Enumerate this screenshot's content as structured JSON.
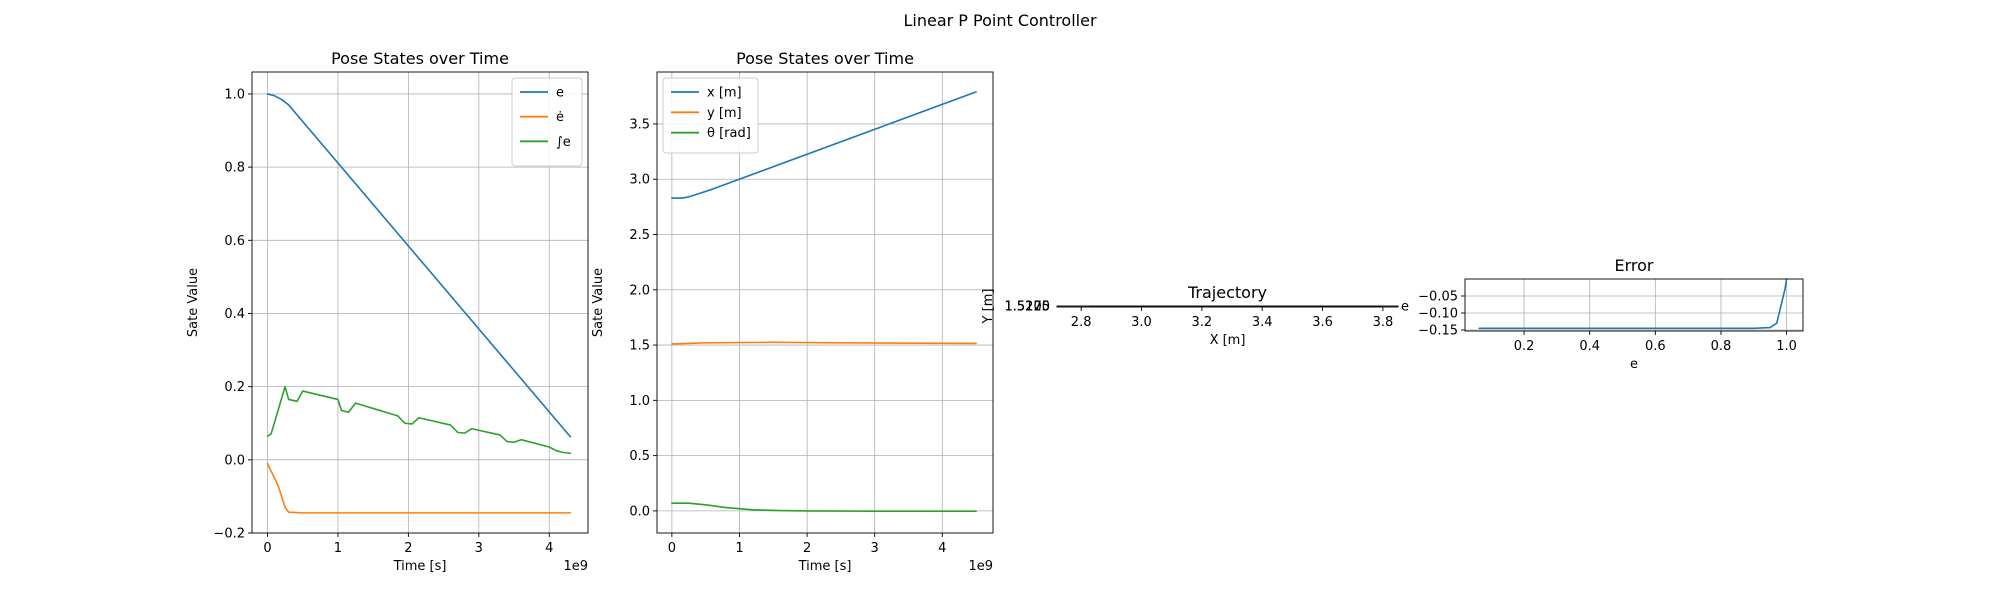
{
  "figure": {
    "suptitle": "Linear P Point Controller"
  },
  "chart_data": [
    {
      "type": "line",
      "title": "Pose States over Time",
      "xlabel": "Time [s]",
      "ylabel": "Sate Value",
      "x_offset_text": "1e9",
      "xlim": [
        -0.22,
        4.55
      ],
      "ylim": [
        -0.2,
        1.06
      ],
      "xticks": [
        0,
        1,
        2,
        3,
        4
      ],
      "xtick_labels": [
        "0",
        "1",
        "2",
        "3",
        "4"
      ],
      "yticks": [
        -0.2,
        0.0,
        0.2,
        0.4,
        0.6,
        0.8,
        1.0
      ],
      "ytick_labels": [
        "−0.2",
        "0.0",
        "0.2",
        "0.4",
        "0.6",
        "0.8",
        "1.0"
      ],
      "grid": true,
      "legend_position": "upper right",
      "series": [
        {
          "name": "e",
          "color": "#1f77b4",
          "x": [
            0,
            0.1,
            0.2,
            0.3,
            4.3
          ],
          "y": [
            1.0,
            0.995,
            0.985,
            0.97,
            0.063
          ]
        },
        {
          "name": "ė",
          "color": "#ff7f0e",
          "x": [
            0,
            0.05,
            0.15,
            0.25,
            0.3,
            0.4,
            0.5,
            4.3
          ],
          "y": [
            -0.01,
            -0.03,
            -0.07,
            -0.13,
            -0.143,
            -0.144,
            -0.145,
            -0.145
          ]
        },
        {
          "name": "∫e",
          "color": "#2ca02c",
          "x": [
            0,
            0.05,
            0.25,
            0.3,
            0.42,
            0.5,
            1.0,
            1.05,
            1.15,
            1.25,
            1.85,
            1.95,
            2.05,
            2.15,
            2.6,
            2.7,
            2.8,
            2.9,
            3.3,
            3.4,
            3.5,
            3.6,
            4.0,
            4.1,
            4.2,
            4.3
          ],
          "y": [
            0.065,
            0.07,
            0.2,
            0.165,
            0.16,
            0.188,
            0.165,
            0.135,
            0.13,
            0.155,
            0.12,
            0.1,
            0.098,
            0.115,
            0.095,
            0.075,
            0.073,
            0.085,
            0.068,
            0.05,
            0.048,
            0.055,
            0.035,
            0.025,
            0.02,
            0.018
          ]
        }
      ]
    },
    {
      "type": "line",
      "title": "Pose States over Time",
      "xlabel": "Time [s]",
      "ylabel": "Sate Value",
      "x_offset_text": "1e9",
      "xlim": [
        -0.22,
        4.75
      ],
      "ylim": [
        -0.2,
        3.97
      ],
      "xticks": [
        0,
        1,
        2,
        3,
        4
      ],
      "xtick_labels": [
        "0",
        "1",
        "2",
        "3",
        "4"
      ],
      "yticks": [
        0.0,
        0.5,
        1.0,
        1.5,
        2.0,
        2.5,
        3.0,
        3.5
      ],
      "ytick_labels": [
        "0.0",
        "0.5",
        "1.0",
        "1.5",
        "2.0",
        "2.5",
        "3.0",
        "3.5"
      ],
      "grid": true,
      "legend_position": "upper left",
      "series": [
        {
          "name": "x [m]",
          "color": "#1f77b4",
          "x": [
            0,
            0.15,
            0.25,
            0.4,
            0.6,
            4.5
          ],
          "y": [
            2.83,
            2.83,
            2.84,
            2.87,
            2.91,
            3.79
          ]
        },
        {
          "name": "y [m]",
          "color": "#ff7f0e",
          "x": [
            0,
            0.5,
            1.5,
            2.5,
            4.5
          ],
          "y": [
            1.51,
            1.52,
            1.525,
            1.52,
            1.515
          ]
        },
        {
          "name": "θ [rad]",
          "color": "#2ca02c",
          "x": [
            0,
            0.25,
            0.5,
            0.8,
            1.2,
            1.6,
            2.0,
            3.0,
            4.5
          ],
          "y": [
            0.07,
            0.07,
            0.055,
            0.03,
            0.01,
            0.003,
            0.0,
            -0.003,
            -0.003
          ]
        }
      ]
    },
    {
      "type": "line",
      "title": "Trajectory",
      "xlabel": "X [m]",
      "ylabel": "Y [m]",
      "xlim": [
        2.72,
        3.85
      ],
      "ylim": [
        1.5179,
        1.5223
      ],
      "xticks": [
        2.8,
        3.0,
        3.2,
        3.4,
        3.6,
        3.8
      ],
      "xtick_labels": [
        "2.8",
        "3.0",
        "3.2",
        "3.4",
        "3.6",
        "3.8"
      ],
      "ytick_labels": [
        "1.5225",
        "1.5200",
        "1.5175"
      ],
      "overlap_tick_labels": [
        "1.5225",
        "1.5200",
        "1.5175"
      ],
      "grid": true,
      "series": [
        {
          "name": "",
          "color": "#1f77b4",
          "x": [
            2.83,
            3.3,
            3.79
          ],
          "y": [
            1.5202,
            1.5203,
            1.5202
          ]
        }
      ],
      "edge_marker": "e"
    },
    {
      "type": "line",
      "title": "Error",
      "xlabel": "e",
      "ylabel": "",
      "xlim": [
        0.02,
        1.05
      ],
      "ylim": [
        -0.153,
        0.0
      ],
      "xticks": [
        0.2,
        0.4,
        0.6,
        0.8,
        1.0
      ],
      "xtick_labels": [
        "0.2",
        "0.4",
        "0.6",
        "0.8",
        "1.0"
      ],
      "yticks": [
        -0.05,
        -0.1,
        -0.15
      ],
      "ytick_labels": [
        "−0.05",
        "−0.10",
        "−0.15"
      ],
      "grid": true,
      "series": [
        {
          "name": "",
          "color": "#1f77b4",
          "x": [
            0.063,
            0.9,
            0.95,
            0.97,
            0.985,
            0.995,
            1.0
          ],
          "y": [
            -0.145,
            -0.145,
            -0.143,
            -0.13,
            -0.07,
            -0.03,
            0.0
          ]
        }
      ]
    }
  ]
}
